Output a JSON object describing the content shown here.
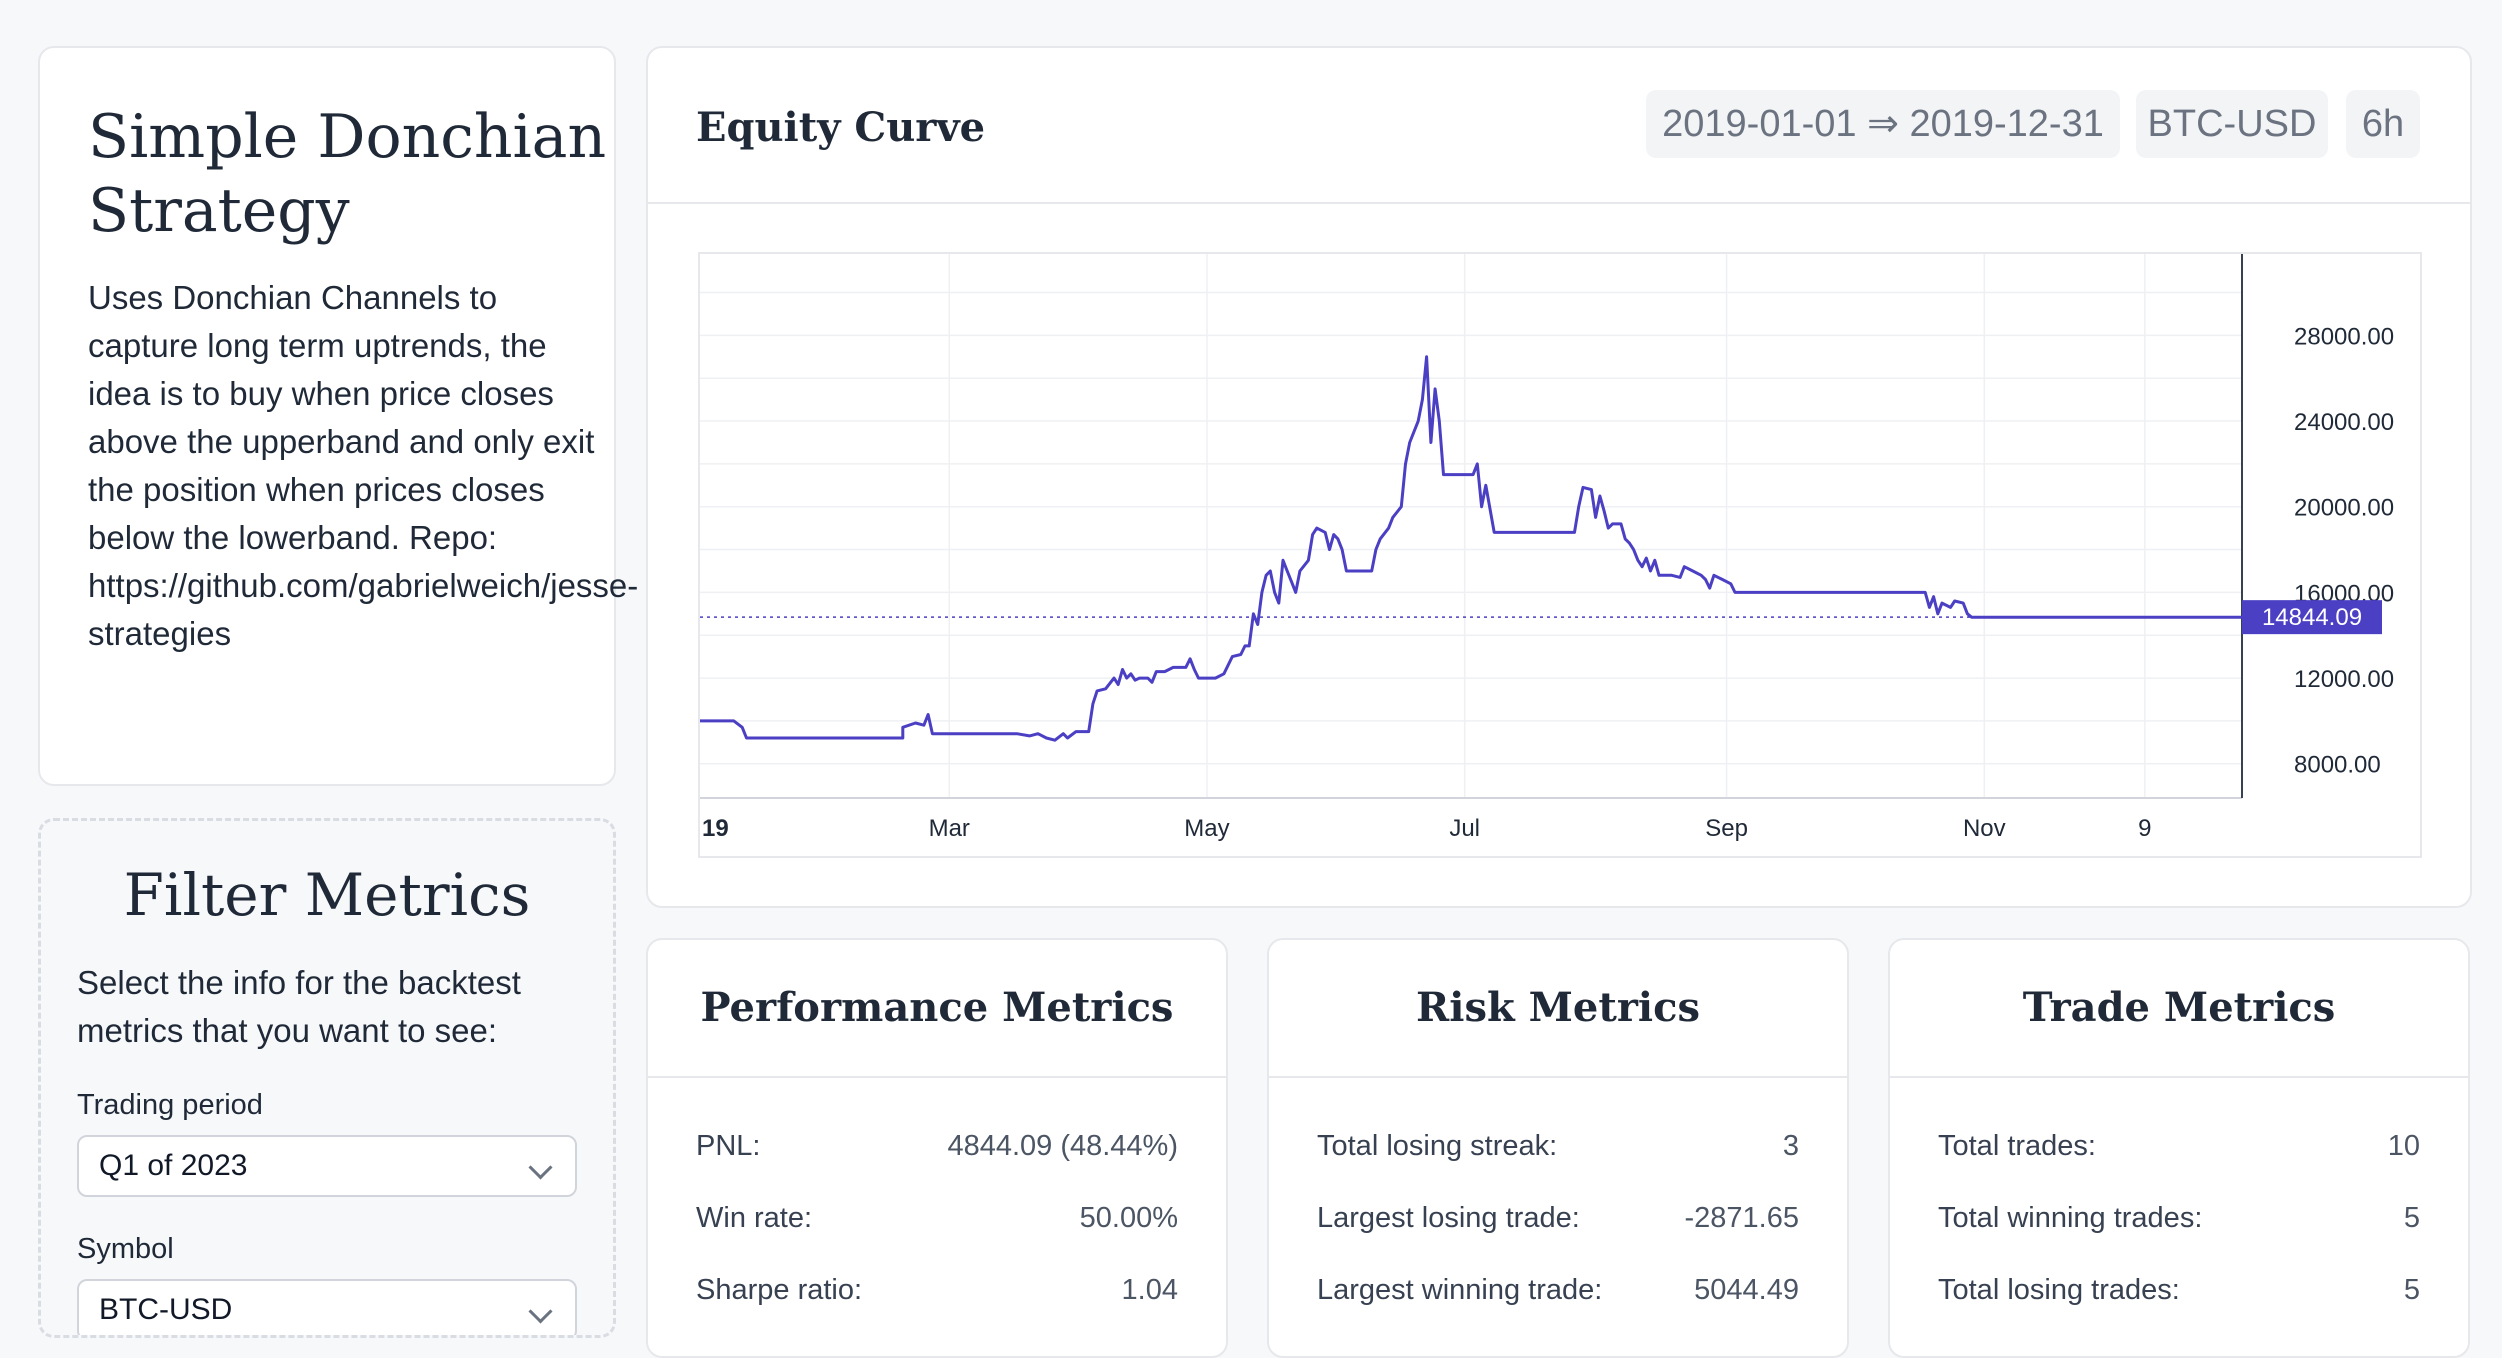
{
  "strategy": {
    "title": "Simple Donchian Strategy",
    "description": "Uses Donchian Channels to capture long term uptrends, the idea is to buy when price closes above the upperband and only exit the position when prices closes below the lowerband. Repo:",
    "repo": "https://github.com/gabrielweich/jesse-",
    "repo_tail": "strategies"
  },
  "filters": {
    "title": "Filter Metrics",
    "description": "Select the info for the backtest metrics that you want to see:",
    "trading_period_label": "Trading period",
    "trading_period_value": "Q1 of 2023",
    "symbol_label": "Symbol",
    "symbol_value": "BTC-USD"
  },
  "equity": {
    "title": "Equity Curve",
    "date_range": "2019-01-01 ⇒ 2019-12-31",
    "symbol": "BTC-USD",
    "timeframe": "6h"
  },
  "chart_data": {
    "type": "line",
    "x_tick_labels": [
      "19",
      "Mar",
      "May",
      "Jul",
      "Sep",
      "Nov",
      "9"
    ],
    "y_tick_labels": [
      "28000.00",
      "24000.00",
      "20000.00",
      "16000.00",
      "12000.00",
      "8000.00"
    ],
    "y_ticks": [
      28000,
      24000,
      20000,
      16000,
      12000,
      8000
    ],
    "ylim": [
      6400,
      31800
    ],
    "xlim": [
      0,
      365
    ],
    "x_ticks": [
      0,
      59,
      120,
      181,
      243,
      304,
      342
    ],
    "last_value": 14844.09,
    "last_value_label": "14844.09",
    "line_color": "#4b3fc4",
    "grid": true,
    "series": [
      {
        "values": [
          [
            0,
            10000
          ],
          [
            8,
            10000
          ],
          [
            10,
            9700
          ],
          [
            11,
            9200
          ],
          [
            40,
            9200
          ],
          [
            48,
            9200
          ],
          [
            48,
            9700
          ],
          [
            51,
            9900
          ],
          [
            53,
            9800
          ],
          [
            54,
            10300
          ],
          [
            55,
            9400
          ],
          [
            65,
            9400
          ],
          [
            75,
            9400
          ],
          [
            78,
            9300
          ],
          [
            80,
            9400
          ],
          [
            82,
            9200
          ],
          [
            84,
            9100
          ],
          [
            86,
            9400
          ],
          [
            87,
            9200
          ],
          [
            89,
            9500
          ],
          [
            92,
            9500
          ],
          [
            93,
            10800
          ],
          [
            94,
            11400
          ],
          [
            96,
            11500
          ],
          [
            98,
            12000
          ],
          [
            99,
            11700
          ],
          [
            100,
            12400
          ],
          [
            101,
            12000
          ],
          [
            102,
            12200
          ],
          [
            103,
            11900
          ],
          [
            104,
            12000
          ],
          [
            106,
            12000
          ],
          [
            107,
            11800
          ],
          [
            108,
            12300
          ],
          [
            110,
            12300
          ],
          [
            112,
            12500
          ],
          [
            115,
            12500
          ],
          [
            116,
            12900
          ],
          [
            117,
            12400
          ],
          [
            118,
            12000
          ],
          [
            122,
            12000
          ],
          [
            124,
            12200
          ],
          [
            126,
            13000
          ],
          [
            128,
            13100
          ],
          [
            129,
            13500
          ],
          [
            130,
            13500
          ],
          [
            131,
            15000
          ],
          [
            132,
            14500
          ],
          [
            133,
            16000
          ],
          [
            134,
            16800
          ],
          [
            135,
            17000
          ],
          [
            136,
            16000
          ],
          [
            137,
            15500
          ],
          [
            138,
            17500
          ],
          [
            139,
            17000
          ],
          [
            140,
            16500
          ],
          [
            141,
            16000
          ],
          [
            142,
            17000
          ],
          [
            144,
            17500
          ],
          [
            145,
            18700
          ],
          [
            146,
            19000
          ],
          [
            148,
            18800
          ],
          [
            149,
            18000
          ],
          [
            150,
            18700
          ],
          [
            151,
            18500
          ],
          [
            152,
            18000
          ],
          [
            153,
            17000
          ],
          [
            159,
            17000
          ],
          [
            160,
            18000
          ],
          [
            161,
            18500
          ],
          [
            163,
            19000
          ],
          [
            164,
            19500
          ],
          [
            166,
            20000
          ],
          [
            167,
            22000
          ],
          [
            168,
            23000
          ],
          [
            170,
            24000
          ],
          [
            171,
            25000
          ],
          [
            172,
            27000
          ],
          [
            173,
            23000
          ],
          [
            174,
            25500
          ],
          [
            175,
            24000
          ],
          [
            176,
            21500
          ],
          [
            183,
            21500
          ],
          [
            184,
            22000
          ],
          [
            185,
            20000
          ],
          [
            186,
            21000
          ],
          [
            188,
            18800
          ],
          [
            199,
            18800
          ],
          [
            207,
            18800
          ],
          [
            208,
            20000
          ],
          [
            209,
            20900
          ],
          [
            211,
            20800
          ],
          [
            212,
            19500
          ],
          [
            213,
            20500
          ],
          [
            214,
            19800
          ],
          [
            215,
            19000
          ],
          [
            216,
            19200
          ],
          [
            218,
            19200
          ],
          [
            219,
            18500
          ],
          [
            220,
            18300
          ],
          [
            221,
            18000
          ],
          [
            222,
            17500
          ],
          [
            223,
            17200
          ],
          [
            224,
            17600
          ],
          [
            225,
            17000
          ],
          [
            226,
            17500
          ],
          [
            227,
            16800
          ],
          [
            230,
            16800
          ],
          [
            232,
            16700
          ],
          [
            233,
            17200
          ],
          [
            235,
            17000
          ],
          [
            237,
            16800
          ],
          [
            238,
            16600
          ],
          [
            239,
            16200
          ],
          [
            240,
            16800
          ],
          [
            242,
            16600
          ],
          [
            244,
            16400
          ],
          [
            245,
            16000
          ],
          [
            290,
            16000
          ],
          [
            291,
            15300
          ],
          [
            292,
            15800
          ],
          [
            293,
            15000
          ],
          [
            294,
            15500
          ],
          [
            296,
            15300
          ],
          [
            297,
            15600
          ],
          [
            299,
            15500
          ],
          [
            300,
            15000
          ],
          [
            301,
            14844
          ],
          [
            365,
            14844
          ]
        ]
      }
    ]
  },
  "metrics": {
    "performance": {
      "title": "Performance Metrics",
      "rows": [
        {
          "label": "PNL:",
          "value": "4844.09 (48.44%)"
        },
        {
          "label": "Win rate:",
          "value": "50.00%"
        },
        {
          "label": "Sharpe ratio:",
          "value": "1.04"
        }
      ]
    },
    "risk": {
      "title": "Risk Metrics",
      "rows": [
        {
          "label": "Total losing streak:",
          "value": "3"
        },
        {
          "label": "Largest losing trade:",
          "value": "-2871.65"
        },
        {
          "label": "Largest winning trade:",
          "value": "5044.49"
        }
      ]
    },
    "trade": {
      "title": "Trade Metrics",
      "rows": [
        {
          "label": "Total trades:",
          "value": "10"
        },
        {
          "label": "Total winning trades:",
          "value": "5"
        },
        {
          "label": "Total losing trades:",
          "value": "5"
        }
      ]
    }
  }
}
